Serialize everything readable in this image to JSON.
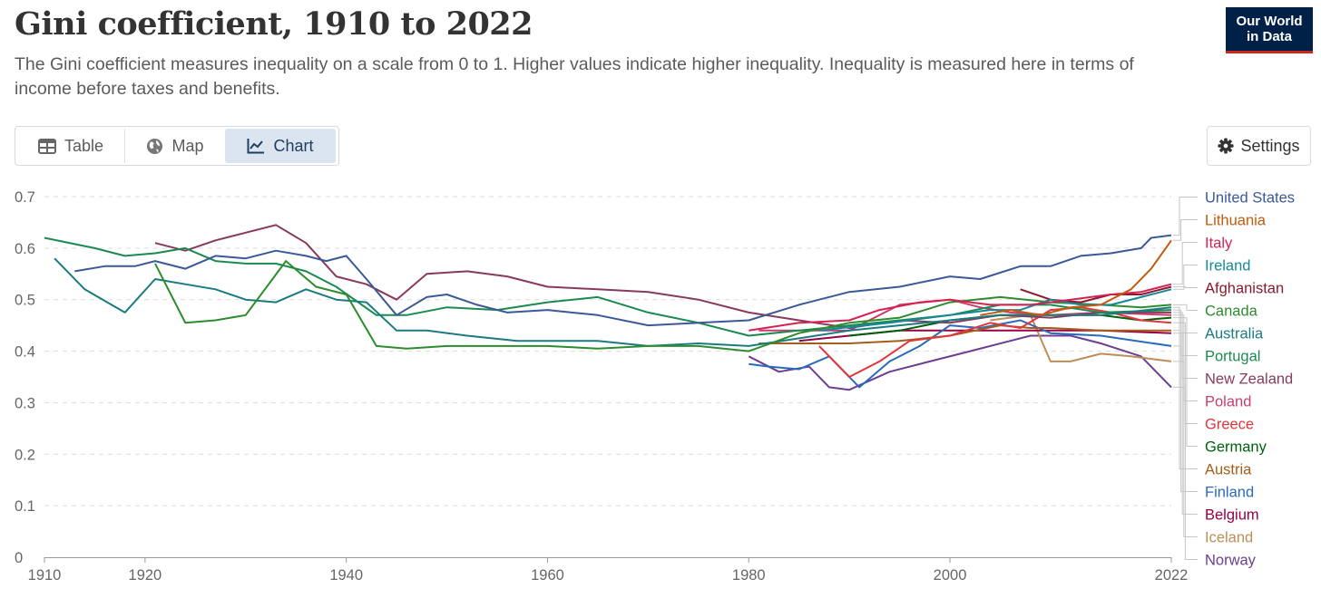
{
  "header": {
    "title": "Gini coefficient, 1910 to 2022",
    "subtitle": "The Gini coefficient measures inequality on a scale from 0 to 1. Higher values indicate higher inequality. Inequality is measured here in terms of income before taxes and benefits.",
    "logo_line1": "Our World",
    "logo_line2": "in Data"
  },
  "tabs": [
    {
      "label": "Table",
      "icon": "table-icon",
      "active": false
    },
    {
      "label": "Map",
      "icon": "globe-icon",
      "active": false
    },
    {
      "label": "Chart",
      "icon": "line-chart-icon",
      "active": true
    }
  ],
  "settings": {
    "label": "Settings",
    "icon": "gear-icon"
  },
  "chart_data": {
    "type": "line",
    "title": "Gini coefficient, 1910 to 2022",
    "xlabel": "",
    "ylabel": "",
    "xlim": [
      1910,
      2022
    ],
    "ylim": [
      0,
      0.7
    ],
    "x_ticks": [
      1910,
      1920,
      1940,
      1960,
      1980,
      2000,
      2022
    ],
    "y_ticks": [
      0,
      0.1,
      0.2,
      0.3,
      0.4,
      0.5,
      0.6,
      0.7
    ],
    "y_tick_labels": [
      "0",
      "0.1",
      "0.2",
      "0.3",
      "0.4",
      "0.5",
      "0.6",
      "0.7"
    ],
    "grid": "horizontal dashed",
    "legend_placement": "right",
    "series": [
      {
        "name": "United States",
        "color": "#3b5998",
        "data": [
          [
            1913,
            0.555
          ],
          [
            1916,
            0.565
          ],
          [
            1919,
            0.565
          ],
          [
            1921,
            0.575
          ],
          [
            1924,
            0.56
          ],
          [
            1927,
            0.585
          ],
          [
            1930,
            0.58
          ],
          [
            1933,
            0.595
          ],
          [
            1936,
            0.585
          ],
          [
            1938,
            0.575
          ],
          [
            1940,
            0.585
          ],
          [
            1942,
            0.54
          ],
          [
            1945,
            0.47
          ],
          [
            1948,
            0.505
          ],
          [
            1950,
            0.51
          ],
          [
            1953,
            0.49
          ],
          [
            1956,
            0.475
          ],
          [
            1960,
            0.48
          ],
          [
            1965,
            0.47
          ],
          [
            1970,
            0.45
          ],
          [
            1975,
            0.455
          ],
          [
            1980,
            0.46
          ],
          [
            1985,
            0.49
          ],
          [
            1990,
            0.515
          ],
          [
            1995,
            0.525
          ],
          [
            2000,
            0.545
          ],
          [
            2003,
            0.54
          ],
          [
            2007,
            0.565
          ],
          [
            2010,
            0.565
          ],
          [
            2013,
            0.585
          ],
          [
            2016,
            0.59
          ],
          [
            2019,
            0.6
          ],
          [
            2020,
            0.62
          ],
          [
            2022,
            0.625
          ]
        ]
      },
      {
        "name": "Lithuania",
        "color": "#c15b0f",
        "data": [
          [
            2003,
            0.47
          ],
          [
            2006,
            0.48
          ],
          [
            2009,
            0.47
          ],
          [
            2012,
            0.485
          ],
          [
            2015,
            0.49
          ],
          [
            2018,
            0.52
          ],
          [
            2020,
            0.56
          ],
          [
            2022,
            0.615
          ]
        ]
      },
      {
        "name": "Italy",
        "color": "#d52253",
        "data": [
          [
            1980,
            0.44
          ],
          [
            1985,
            0.455
          ],
          [
            1990,
            0.46
          ],
          [
            1993,
            0.48
          ],
          [
            1997,
            0.495
          ],
          [
            2000,
            0.5
          ],
          [
            2004,
            0.49
          ],
          [
            2008,
            0.49
          ],
          [
            2012,
            0.5
          ],
          [
            2016,
            0.51
          ],
          [
            2019,
            0.515
          ],
          [
            2022,
            0.53
          ]
        ]
      },
      {
        "name": "Ireland",
        "color": "#18879a",
        "data": [
          [
            1987,
            0.44
          ],
          [
            1994,
            0.455
          ],
          [
            2000,
            0.47
          ],
          [
            2004,
            0.48
          ],
          [
            2007,
            0.48
          ],
          [
            2010,
            0.5
          ],
          [
            2013,
            0.49
          ],
          [
            2016,
            0.49
          ],
          [
            2019,
            0.505
          ],
          [
            2022,
            0.52
          ]
        ]
      },
      {
        "name": "Afghanistan",
        "color": "#8a1a2f",
        "data": [
          [
            2007,
            0.52
          ],
          [
            2010,
            0.5
          ],
          [
            2013,
            0.495
          ],
          [
            2016,
            0.51
          ],
          [
            2019,
            0.51
          ],
          [
            2022,
            0.525
          ]
        ]
      },
      {
        "name": "Canada",
        "color": "#2e8b2e",
        "data": [
          [
            1921,
            0.57
          ],
          [
            1924,
            0.455
          ],
          [
            1927,
            0.46
          ],
          [
            1930,
            0.47
          ],
          [
            1934,
            0.575
          ],
          [
            1937,
            0.525
          ],
          [
            1940,
            0.51
          ],
          [
            1943,
            0.41
          ],
          [
            1946,
            0.405
          ],
          [
            1950,
            0.41
          ],
          [
            1955,
            0.41
          ],
          [
            1960,
            0.41
          ],
          [
            1965,
            0.405
          ],
          [
            1970,
            0.41
          ],
          [
            1975,
            0.41
          ],
          [
            1980,
            0.4
          ],
          [
            1985,
            0.435
          ],
          [
            1990,
            0.455
          ],
          [
            1995,
            0.465
          ],
          [
            2000,
            0.495
          ],
          [
            2005,
            0.505
          ],
          [
            2010,
            0.495
          ],
          [
            2015,
            0.49
          ],
          [
            2019,
            0.485
          ],
          [
            2022,
            0.49
          ]
        ]
      },
      {
        "name": "Australia",
        "color": "#1a7b80",
        "data": [
          [
            1911,
            0.58
          ],
          [
            1914,
            0.52
          ],
          [
            1918,
            0.475
          ],
          [
            1921,
            0.54
          ],
          [
            1924,
            0.53
          ],
          [
            1927,
            0.52
          ],
          [
            1930,
            0.5
          ],
          [
            1933,
            0.495
          ],
          [
            1936,
            0.52
          ],
          [
            1939,
            0.5
          ],
          [
            1942,
            0.495
          ],
          [
            1945,
            0.44
          ],
          [
            1948,
            0.44
          ],
          [
            1952,
            0.43
          ],
          [
            1957,
            0.42
          ],
          [
            1960,
            0.42
          ],
          [
            1965,
            0.42
          ],
          [
            1970,
            0.41
          ],
          [
            1975,
            0.415
          ],
          [
            1980,
            0.41
          ],
          [
            1985,
            0.425
          ],
          [
            1990,
            0.44
          ],
          [
            1995,
            0.45
          ],
          [
            2000,
            0.46
          ],
          [
            2005,
            0.47
          ],
          [
            2010,
            0.47
          ],
          [
            2015,
            0.47
          ],
          [
            2022,
            0.485
          ]
        ]
      },
      {
        "name": "Portugal",
        "color": "#1b8a50",
        "data": [
          [
            1910,
            0.62
          ],
          [
            1915,
            0.6
          ],
          [
            1918,
            0.585
          ],
          [
            1921,
            0.59
          ],
          [
            1924,
            0.6
          ],
          [
            1927,
            0.575
          ],
          [
            1930,
            0.57
          ],
          [
            1933,
            0.57
          ],
          [
            1936,
            0.555
          ],
          [
            1939,
            0.525
          ],
          [
            1943,
            0.47
          ],
          [
            1946,
            0.47
          ],
          [
            1950,
            0.485
          ],
          [
            1955,
            0.48
          ],
          [
            1960,
            0.495
          ],
          [
            1965,
            0.505
          ],
          [
            1970,
            0.475
          ],
          [
            1975,
            0.455
          ],
          [
            1980,
            0.43
          ],
          [
            1985,
            0.44
          ],
          [
            1990,
            0.45
          ],
          [
            1995,
            0.46
          ],
          [
            2000,
            0.47
          ],
          [
            2005,
            0.49
          ],
          [
            2010,
            0.49
          ],
          [
            2015,
            0.475
          ],
          [
            2022,
            0.48
          ]
        ]
      },
      {
        "name": "New Zealand",
        "color": "#883a5e",
        "data": [
          [
            1921,
            0.61
          ],
          [
            1924,
            0.595
          ],
          [
            1927,
            0.615
          ],
          [
            1930,
            0.63
          ],
          [
            1933,
            0.645
          ],
          [
            1936,
            0.61
          ],
          [
            1939,
            0.545
          ],
          [
            1942,
            0.53
          ],
          [
            1945,
            0.5
          ],
          [
            1948,
            0.55
          ],
          [
            1952,
            0.555
          ],
          [
            1956,
            0.545
          ],
          [
            1960,
            0.525
          ],
          [
            1965,
            0.52
          ],
          [
            1970,
            0.515
          ],
          [
            1975,
            0.5
          ],
          [
            1980,
            0.475
          ],
          [
            1985,
            0.46
          ],
          [
            1990,
            0.445
          ],
          [
            1995,
            0.46
          ],
          [
            2000,
            0.455
          ],
          [
            2005,
            0.47
          ],
          [
            2010,
            0.465
          ],
          [
            2015,
            0.475
          ],
          [
            2022,
            0.475
          ]
        ]
      },
      {
        "name": "Poland",
        "color": "#cb3d6e",
        "data": [
          [
            1981,
            0.44
          ],
          [
            1985,
            0.44
          ],
          [
            1990,
            0.44
          ],
          [
            1995,
            0.49
          ],
          [
            2000,
            0.5
          ],
          [
            2003,
            0.485
          ],
          [
            2006,
            0.475
          ],
          [
            2010,
            0.47
          ],
          [
            2015,
            0.475
          ],
          [
            2022,
            0.47
          ]
        ]
      },
      {
        "name": "Greece",
        "color": "#e0363c",
        "data": [
          [
            1987,
            0.41
          ],
          [
            1990,
            0.35
          ],
          [
            1993,
            0.38
          ],
          [
            1996,
            0.42
          ],
          [
            2000,
            0.43
          ],
          [
            2004,
            0.455
          ],
          [
            2007,
            0.445
          ],
          [
            2010,
            0.48
          ],
          [
            2013,
            0.485
          ],
          [
            2016,
            0.475
          ],
          [
            2019,
            0.46
          ],
          [
            2022,
            0.455
          ]
        ]
      },
      {
        "name": "Germany",
        "color": "#00600c",
        "data": [
          [
            1990,
            0.43
          ],
          [
            1995,
            0.44
          ],
          [
            2000,
            0.46
          ],
          [
            2005,
            0.47
          ],
          [
            2010,
            0.47
          ],
          [
            2015,
            0.47
          ],
          [
            2019,
            0.46
          ],
          [
            2022,
            0.465
          ]
        ]
      },
      {
        "name": "Austria",
        "color": "#a65d1b",
        "data": [
          [
            1981,
            0.415
          ],
          [
            1990,
            0.415
          ],
          [
            1995,
            0.42
          ],
          [
            2000,
            0.43
          ],
          [
            2005,
            0.45
          ],
          [
            2008,
            0.445
          ],
          [
            2010,
            0.445
          ],
          [
            2015,
            0.44
          ],
          [
            2022,
            0.44
          ]
        ]
      },
      {
        "name": "Finland",
        "color": "#286bbb",
        "data": [
          [
            1980,
            0.375
          ],
          [
            1982,
            0.37
          ],
          [
            1985,
            0.365
          ],
          [
            1988,
            0.39
          ],
          [
            1991,
            0.33
          ],
          [
            1994,
            0.38
          ],
          [
            1997,
            0.41
          ],
          [
            2000,
            0.45
          ],
          [
            2003,
            0.445
          ],
          [
            2007,
            0.46
          ],
          [
            2010,
            0.435
          ],
          [
            2015,
            0.43
          ],
          [
            2022,
            0.41
          ]
        ]
      },
      {
        "name": "Belgium",
        "color": "#970046",
        "data": [
          [
            1985,
            0.42
          ],
          [
            1990,
            0.43
          ],
          [
            1995,
            0.44
          ],
          [
            2000,
            0.44
          ],
          [
            2005,
            0.44
          ],
          [
            2010,
            0.44
          ],
          [
            2015,
            0.44
          ],
          [
            2022,
            0.435
          ]
        ]
      },
      {
        "name": "Iceland",
        "color": "#bc8e5a",
        "data": [
          [
            2004,
            0.46
          ],
          [
            2008,
            0.47
          ],
          [
            2010,
            0.38
          ],
          [
            2012,
            0.38
          ],
          [
            2015,
            0.395
          ],
          [
            2018,
            0.39
          ],
          [
            2022,
            0.38
          ]
        ]
      },
      {
        "name": "Norway",
        "color": "#6d3e91",
        "data": [
          [
            1980,
            0.39
          ],
          [
            1983,
            0.36
          ],
          [
            1986,
            0.37
          ],
          [
            1988,
            0.33
          ],
          [
            1990,
            0.325
          ],
          [
            1994,
            0.36
          ],
          [
            1998,
            0.38
          ],
          [
            2002,
            0.4
          ],
          [
            2006,
            0.42
          ],
          [
            2008,
            0.43
          ],
          [
            2012,
            0.43
          ],
          [
            2015,
            0.415
          ],
          [
            2019,
            0.39
          ],
          [
            2022,
            0.33
          ]
        ]
      }
    ]
  }
}
